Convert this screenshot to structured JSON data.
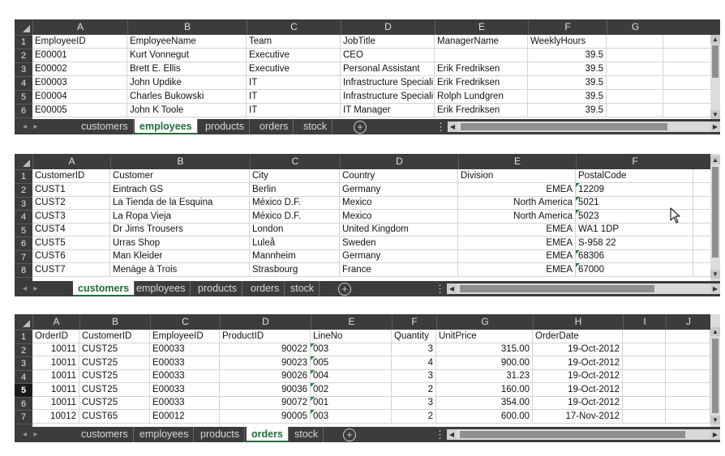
{
  "sheets": [
    {
      "columns": [
        "A",
        "B",
        "C",
        "D",
        "E",
        "F",
        "G"
      ],
      "rows": [
        [
          "1",
          "EmployeeID",
          "EmployeeName",
          "Team",
          "JobTitle",
          "ManagerName",
          "WeeklyHours"
        ],
        [
          "2",
          "E00001",
          "Kurt Vonnegut",
          "Executive",
          "CEO",
          "",
          "39.5"
        ],
        [
          "3",
          "E00002",
          "Brett E. Ellis",
          "Executive",
          "Personal Assistant",
          "Erik Fredriksen",
          "39.5"
        ],
        [
          "4",
          "E00003",
          "John Updike",
          "IT",
          "Infrastructure Speciali",
          "Erik Fredriksen",
          "39.5"
        ],
        [
          "5",
          "E00004",
          "Charles Bukowski",
          "IT",
          "Infrastructure Speciali",
          "Rolph Lundgren",
          "39.5"
        ],
        [
          "6",
          "E00005",
          "John K Toole",
          "IT",
          "IT Manager",
          "Erik Fredriksen",
          "39.5"
        ]
      ],
      "tabs": [
        "customers",
        "employees",
        "products",
        "orders",
        "stock"
      ],
      "active_tab": "employees"
    },
    {
      "columns": [
        "A",
        "B",
        "C",
        "D",
        "E",
        "F"
      ],
      "rows": [
        [
          "1",
          "CustomerID",
          "Customer",
          "City",
          "Country",
          "Division",
          "PostalCode"
        ],
        [
          "2",
          "CUST1",
          "Eintrach GS",
          "Berlin",
          "Germany",
          "EMEA",
          "12209"
        ],
        [
          "3",
          "CUST2",
          "La Tienda de la Esquina",
          "México D.F.",
          "Mexico",
          "North America",
          "5021"
        ],
        [
          "4",
          "CUST3",
          "La Ropa Vieja",
          "México D.F.",
          "Mexico",
          "North America",
          "5023"
        ],
        [
          "5",
          "CUST4",
          "Dr Jims Trousers",
          "London",
          "United Kingdom",
          "EMEA",
          "WA1 1DP"
        ],
        [
          "6",
          "CUST5",
          "Urras Shop",
          "Luleå",
          "Sweden",
          "EMEA",
          "S-958 22"
        ],
        [
          "7",
          "CUST6",
          "Man Kleider",
          "Mannheim",
          "Germany",
          "EMEA",
          "68306"
        ],
        [
          "8",
          "CUST7",
          "Menàge à Trois",
          "Strasbourg",
          "France",
          "EMEA",
          "67000"
        ]
      ],
      "tabs": [
        "customers",
        "employees",
        "products",
        "orders",
        "stock"
      ],
      "active_tab": "customers"
    },
    {
      "columns": [
        "A",
        "B",
        "C",
        "D",
        "E",
        "F",
        "G",
        "H",
        "I",
        "J"
      ],
      "rows": [
        [
          "1",
          "OrderID",
          "CustomerID",
          "EmployeeID",
          "ProductID",
          "LineNo",
          "Quantity",
          "UnitPrice",
          "OrderDate"
        ],
        [
          "2",
          "10011",
          "CUST25",
          "E00033",
          "90022",
          "003",
          "3",
          "315.00",
          "19-Oct-2012"
        ],
        [
          "3",
          "10011",
          "CUST25",
          "E00033",
          "90023",
          "005",
          "4",
          "900.00",
          "19-Oct-2012"
        ],
        [
          "4",
          "10011",
          "CUST25",
          "E00033",
          "90026",
          "004",
          "3",
          "31.23",
          "19-Oct-2012"
        ],
        [
          "5",
          "10011",
          "CUST25",
          "E00033",
          "90036",
          "002",
          "2",
          "160.00",
          "19-Oct-2012"
        ],
        [
          "6",
          "10011",
          "CUST25",
          "E00033",
          "90072",
          "001",
          "3",
          "354.00",
          "19-Oct-2012"
        ],
        [
          "7",
          "10012",
          "CUST65",
          "E00012",
          "90005",
          "003",
          "2",
          "600.00",
          "17-Nov-2012"
        ]
      ],
      "tabs": [
        "customers",
        "employees",
        "products",
        "orders",
        "stock"
      ],
      "active_tab": "orders",
      "selected_row": "5"
    }
  ],
  "icons": {
    "add_sheet": "plus-circle-icon",
    "nav_prev": "triangle-left-icon",
    "nav_next": "triangle-right-icon",
    "cursor": "mouse-pointer-icon"
  },
  "glyphs": {
    "add": "+",
    "prev": "◂",
    "next": "▸",
    "dots": "⋮",
    "up": "▲",
    "down": "▼",
    "left": "◀",
    "right": "▶"
  },
  "colors": {
    "active_tab_text": "#1e6e3a",
    "header_bg": "#3c3c3c",
    "triangle": "#1e8a3c"
  }
}
